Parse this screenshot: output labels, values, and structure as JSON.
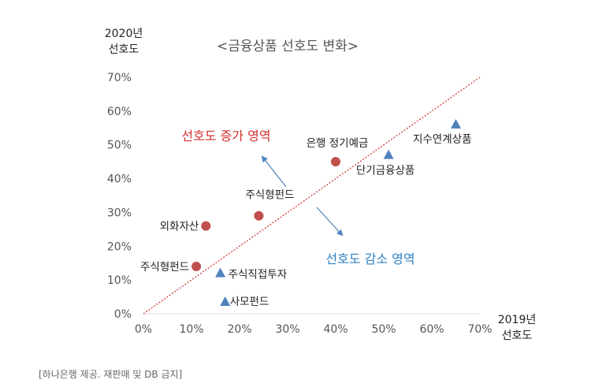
{
  "chart_data": {
    "type": "scatter",
    "title": "<금융상품 선호도 변화>",
    "ylabel_lines": [
      "2020년",
      "선호도"
    ],
    "xlabel_lines": [
      "2019년",
      "선호도"
    ],
    "xlim": [
      0,
      70
    ],
    "ylim": [
      0,
      70
    ],
    "x_ticks": [
      "0%",
      "10%",
      "20%",
      "30%",
      "40%",
      "50%",
      "60%",
      "70%"
    ],
    "y_ticks": [
      "0%",
      "10%",
      "20%",
      "30%",
      "40%",
      "50%",
      "60%",
      "70%"
    ],
    "grid": false,
    "reference_line": {
      "from": [
        0,
        0
      ],
      "to": [
        70,
        70
      ],
      "style": "dashed",
      "color": "#d0302f"
    },
    "points": [
      {
        "label": "외화자산",
        "x": 13,
        "y": 26,
        "marker": "circle",
        "color": "#c0504d"
      },
      {
        "label": "주식형펀드",
        "x": 24,
        "y": 29,
        "marker": "circle",
        "color": "#c0504d"
      },
      {
        "label": "주식형펀드",
        "x": 11,
        "y": 14,
        "marker": "circle",
        "color": "#c0504d"
      },
      {
        "label": "은행 정기예금",
        "x": 40,
        "y": 45,
        "marker": "circle",
        "color": "#c0504d"
      },
      {
        "label": "주식직접투자",
        "x": 16,
        "y": 12,
        "marker": "triangle",
        "color": "#4f81bd"
      },
      {
        "label": "사모펀드",
        "x": 17,
        "y": 3.5,
        "marker": "triangle",
        "color": "#4f81bd"
      },
      {
        "label": "단기금융상품",
        "x": 51,
        "y": 47,
        "marker": "triangle",
        "color": "#4f81bd"
      },
      {
        "label": "지수연계상품",
        "x": 65,
        "y": 56,
        "marker": "triangle",
        "color": "#4f81bd"
      }
    ],
    "annotations": [
      {
        "text": "선호도 증가 영역",
        "color": "#d0302f"
      },
      {
        "text": "선호도 감소 영역",
        "color": "#2f7fbf"
      }
    ]
  },
  "caption": "[하나은행 제공. 재판매 및 DB 금지]"
}
